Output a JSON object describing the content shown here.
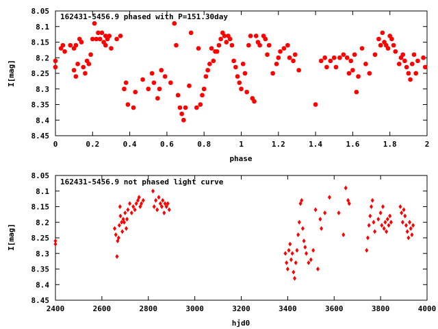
{
  "chart_data": [
    {
      "type": "scatter",
      "title": "162431-5456.9 phased with P=151.30day",
      "xlabel": "phase",
      "ylabel": "I[mag]",
      "xlim": [
        0,
        2
      ],
      "ylim": [
        8.05,
        8.45
      ],
      "y_inverted": true,
      "grid": false,
      "marker": "filled-octagon",
      "color": "#ff0000",
      "x_ticks": [
        "0",
        "0.2",
        "0.4",
        "0.6",
        "0.8",
        "1",
        "1.2",
        "1.4",
        "1.6",
        "1.8",
        "2"
      ],
      "y_ticks": [
        "8.05",
        "8.1",
        "8.15",
        "8.2",
        "8.25",
        "8.3",
        "8.35",
        "8.4",
        "8.45"
      ],
      "points": [
        [
          0.0,
          8.21
        ],
        [
          0.0,
          8.23
        ],
        [
          0.03,
          8.17
        ],
        [
          0.04,
          8.16
        ],
        [
          0.05,
          8.18
        ],
        [
          0.08,
          8.16
        ],
        [
          0.1,
          8.17
        ],
        [
          0.11,
          8.16
        ],
        [
          0.1,
          8.24
        ],
        [
          0.11,
          8.26
        ],
        [
          0.12,
          8.22
        ],
        [
          0.13,
          8.14
        ],
        [
          0.14,
          8.15
        ],
        [
          0.15,
          8.23
        ],
        [
          0.16,
          8.25
        ],
        [
          0.17,
          8.21
        ],
        [
          0.18,
          8.22
        ],
        [
          0.19,
          8.19
        ],
        [
          0.2,
          8.14
        ],
        [
          0.21,
          8.09
        ],
        [
          0.22,
          8.14
        ],
        [
          0.23,
          8.12
        ],
        [
          0.24,
          8.14
        ],
        [
          0.25,
          8.12
        ],
        [
          0.26,
          8.15
        ],
        [
          0.27,
          8.13
        ],
        [
          0.27,
          8.16
        ],
        [
          0.28,
          8.14
        ],
        [
          0.29,
          8.13
        ],
        [
          0.3,
          8.17
        ],
        [
          0.33,
          8.14
        ],
        [
          0.35,
          8.13
        ],
        [
          0.37,
          8.3
        ],
        [
          0.38,
          8.28
        ],
        [
          0.39,
          8.35
        ],
        [
          0.42,
          8.36
        ],
        [
          0.43,
          8.31
        ],
        [
          0.47,
          8.27
        ],
        [
          0.5,
          8.3
        ],
        [
          0.52,
          8.25
        ],
        [
          0.53,
          8.28
        ],
        [
          0.55,
          8.33
        ],
        [
          0.56,
          8.3
        ],
        [
          0.57,
          8.24
        ],
        [
          0.59,
          8.26
        ],
        [
          0.62,
          8.28
        ],
        [
          0.64,
          8.09
        ],
        [
          0.65,
          8.16
        ],
        [
          0.66,
          8.32
        ],
        [
          0.67,
          8.36
        ],
        [
          0.68,
          8.38
        ],
        [
          0.69,
          8.4
        ],
        [
          0.7,
          8.36
        ],
        [
          0.72,
          8.29
        ],
        [
          0.73,
          8.12
        ],
        [
          0.76,
          8.36
        ],
        [
          0.77,
          8.17
        ],
        [
          0.78,
          8.35
        ],
        [
          0.79,
          8.32
        ],
        [
          0.8,
          8.3
        ],
        [
          0.81,
          8.26
        ],
        [
          0.82,
          8.24
        ],
        [
          0.83,
          8.22
        ],
        [
          0.84,
          8.17
        ],
        [
          0.85,
          8.21
        ],
        [
          0.86,
          8.18
        ],
        [
          0.87,
          8.18
        ],
        [
          0.88,
          8.16
        ],
        [
          0.89,
          8.14
        ],
        [
          0.9,
          8.12
        ],
        [
          0.91,
          8.13
        ],
        [
          0.92,
          8.15
        ],
        [
          0.93,
          8.13
        ],
        [
          0.94,
          8.14
        ],
        [
          0.95,
          8.16
        ],
        [
          0.96,
          8.21
        ],
        [
          0.97,
          8.23
        ],
        [
          0.98,
          8.26
        ],
        [
          0.99,
          8.28
        ],
        [
          1.0,
          8.3
        ],
        [
          1.01,
          8.22
        ],
        [
          1.02,
          8.25
        ],
        [
          1.03,
          8.31
        ],
        [
          1.04,
          8.16
        ],
        [
          1.05,
          8.13
        ],
        [
          1.06,
          8.33
        ],
        [
          1.07,
          8.34
        ],
        [
          1.08,
          8.13
        ],
        [
          1.09,
          8.15
        ],
        [
          1.1,
          8.16
        ],
        [
          1.12,
          8.13
        ],
        [
          1.13,
          8.14
        ],
        [
          1.14,
          8.19
        ],
        [
          1.15,
          8.16
        ],
        [
          1.17,
          8.25
        ],
        [
          1.19,
          8.22
        ],
        [
          1.2,
          8.2
        ],
        [
          1.21,
          8.18
        ],
        [
          1.23,
          8.17
        ],
        [
          1.25,
          8.16
        ],
        [
          1.26,
          8.2
        ],
        [
          1.28,
          8.21
        ],
        [
          1.29,
          8.19
        ],
        [
          1.31,
          8.24
        ],
        [
          1.4,
          8.35
        ],
        [
          1.43,
          8.21
        ],
        [
          1.45,
          8.2
        ],
        [
          1.46,
          8.23
        ],
        [
          1.48,
          8.21
        ],
        [
          1.5,
          8.2
        ],
        [
          1.51,
          8.23
        ],
        [
          1.53,
          8.2
        ],
        [
          1.55,
          8.19
        ],
        [
          1.57,
          8.2
        ],
        [
          1.58,
          8.25
        ],
        [
          1.59,
          8.21
        ],
        [
          1.6,
          8.24
        ],
        [
          1.61,
          8.19
        ],
        [
          1.62,
          8.31
        ],
        [
          1.63,
          8.26
        ],
        [
          1.65,
          8.17
        ],
        [
          1.67,
          8.22
        ],
        [
          1.69,
          8.25
        ],
        [
          1.72,
          8.19
        ],
        [
          1.74,
          8.14
        ],
        [
          1.75,
          8.16
        ],
        [
          1.76,
          8.12
        ],
        [
          1.77,
          8.15
        ],
        [
          1.78,
          8.16
        ],
        [
          1.79,
          8.17
        ],
        [
          1.8,
          8.13
        ],
        [
          1.81,
          8.14
        ],
        [
          1.82,
          8.16
        ],
        [
          1.83,
          8.18
        ],
        [
          1.85,
          8.22
        ],
        [
          1.86,
          8.2
        ],
        [
          1.87,
          8.19
        ],
        [
          1.88,
          8.21
        ],
        [
          1.89,
          8.23
        ],
        [
          1.9,
          8.25
        ],
        [
          1.91,
          8.27
        ],
        [
          1.92,
          8.22
        ],
        [
          1.93,
          8.19
        ],
        [
          1.94,
          8.25
        ],
        [
          1.95,
          8.21
        ],
        [
          1.98,
          8.2
        ],
        [
          1.99,
          8.23
        ]
      ]
    },
    {
      "type": "scatter",
      "title": "162431-5456.9 not phased light curve",
      "xlabel": "hjd0",
      "ylabel": "I[mag]",
      "xlim": [
        2400,
        4000
      ],
      "ylim": [
        8.05,
        8.45
      ],
      "y_inverted": true,
      "grid": false,
      "marker": "diamond",
      "color": "#ff0000",
      "x_ticks": [
        "2400",
        "2600",
        "2800",
        "3000",
        "3200",
        "3400",
        "3600",
        "3800",
        "4000"
      ],
      "y_ticks": [
        "8.05",
        "8.1",
        "8.15",
        "8.2",
        "8.25",
        "8.3",
        "8.35",
        "8.4",
        "8.45"
      ],
      "points": [
        [
          2400,
          8.26
        ],
        [
          2400,
          8.27
        ],
        [
          2655,
          8.22
        ],
        [
          2660,
          8.24
        ],
        [
          2665,
          8.31
        ],
        [
          2668,
          8.26
        ],
        [
          2672,
          8.25
        ],
        [
          2675,
          8.21
        ],
        [
          2678,
          8.15
        ],
        [
          2680,
          8.18
        ],
        [
          2685,
          8.2
        ],
        [
          2688,
          8.23
        ],
        [
          2692,
          8.19
        ],
        [
          2696,
          8.2
        ],
        [
          2700,
          8.17
        ],
        [
          2705,
          8.22
        ],
        [
          2708,
          8.19
        ],
        [
          2712,
          8.16
        ],
        [
          2720,
          8.14
        ],
        [
          2728,
          8.17
        ],
        [
          2735,
          8.15
        ],
        [
          2742,
          8.16
        ],
        [
          2748,
          8.14
        ],
        [
          2755,
          8.13
        ],
        [
          2760,
          8.12
        ],
        [
          2765,
          8.15
        ],
        [
          2770,
          8.14
        ],
        [
          2778,
          8.13
        ],
        [
          2820,
          8.1
        ],
        [
          2825,
          8.15
        ],
        [
          2832,
          8.13
        ],
        [
          2838,
          8.16
        ],
        [
          2845,
          8.12
        ],
        [
          2852,
          8.14
        ],
        [
          2858,
          8.15
        ],
        [
          2862,
          8.13
        ],
        [
          2868,
          8.17
        ],
        [
          2872,
          8.14
        ],
        [
          2878,
          8.15
        ],
        [
          2884,
          8.14
        ],
        [
          2890,
          8.16
        ],
        [
          3390,
          8.3
        ],
        [
          3395,
          8.33
        ],
        [
          3400,
          8.35
        ],
        [
          3405,
          8.29
        ],
        [
          3410,
          8.27
        ],
        [
          3415,
          8.32
        ],
        [
          3420,
          8.3
        ],
        [
          3425,
          8.36
        ],
        [
          3430,
          8.38
        ],
        [
          3435,
          8.33
        ],
        [
          3440,
          8.29
        ],
        [
          3445,
          8.24
        ],
        [
          3450,
          8.2
        ],
        [
          3455,
          8.14
        ],
        [
          3460,
          8.13
        ],
        [
          3465,
          8.22
        ],
        [
          3470,
          8.26
        ],
        [
          3475,
          8.28
        ],
        [
          3480,
          8.3
        ],
        [
          3490,
          8.33
        ],
        [
          3500,
          8.32
        ],
        [
          3510,
          8.29
        ],
        [
          3520,
          8.16
        ],
        [
          3530,
          8.35
        ],
        [
          3540,
          8.19
        ],
        [
          3545,
          8.22
        ],
        [
          3560,
          8.17
        ],
        [
          3580,
          8.12
        ],
        [
          3620,
          8.17
        ],
        [
          3640,
          8.24
        ],
        [
          3650,
          8.09
        ],
        [
          3660,
          8.13
        ],
        [
          3665,
          8.14
        ],
        [
          3740,
          8.29
        ],
        [
          3745,
          8.25
        ],
        [
          3750,
          8.21
        ],
        [
          3755,
          8.18
        ],
        [
          3760,
          8.15
        ],
        [
          3765,
          8.13
        ],
        [
          3770,
          8.2
        ],
        [
          3775,
          8.23
        ],
        [
          3790,
          8.19
        ],
        [
          3800,
          8.17
        ],
        [
          3805,
          8.21
        ],
        [
          3810,
          8.15
        ],
        [
          3815,
          8.22
        ],
        [
          3820,
          8.2
        ],
        [
          3825,
          8.23
        ],
        [
          3830,
          8.19
        ],
        [
          3835,
          8.21
        ],
        [
          3840,
          8.18
        ],
        [
          3845,
          8.2
        ],
        [
          3885,
          8.15
        ],
        [
          3890,
          8.17
        ],
        [
          3895,
          8.2
        ],
        [
          3900,
          8.16
        ],
        [
          3905,
          8.18
        ],
        [
          3910,
          8.21
        ],
        [
          3915,
          8.23
        ],
        [
          3920,
          8.25
        ],
        [
          3925,
          8.2
        ],
        [
          3930,
          8.22
        ],
        [
          3935,
          8.24
        ],
        [
          3940,
          8.21
        ]
      ]
    }
  ]
}
